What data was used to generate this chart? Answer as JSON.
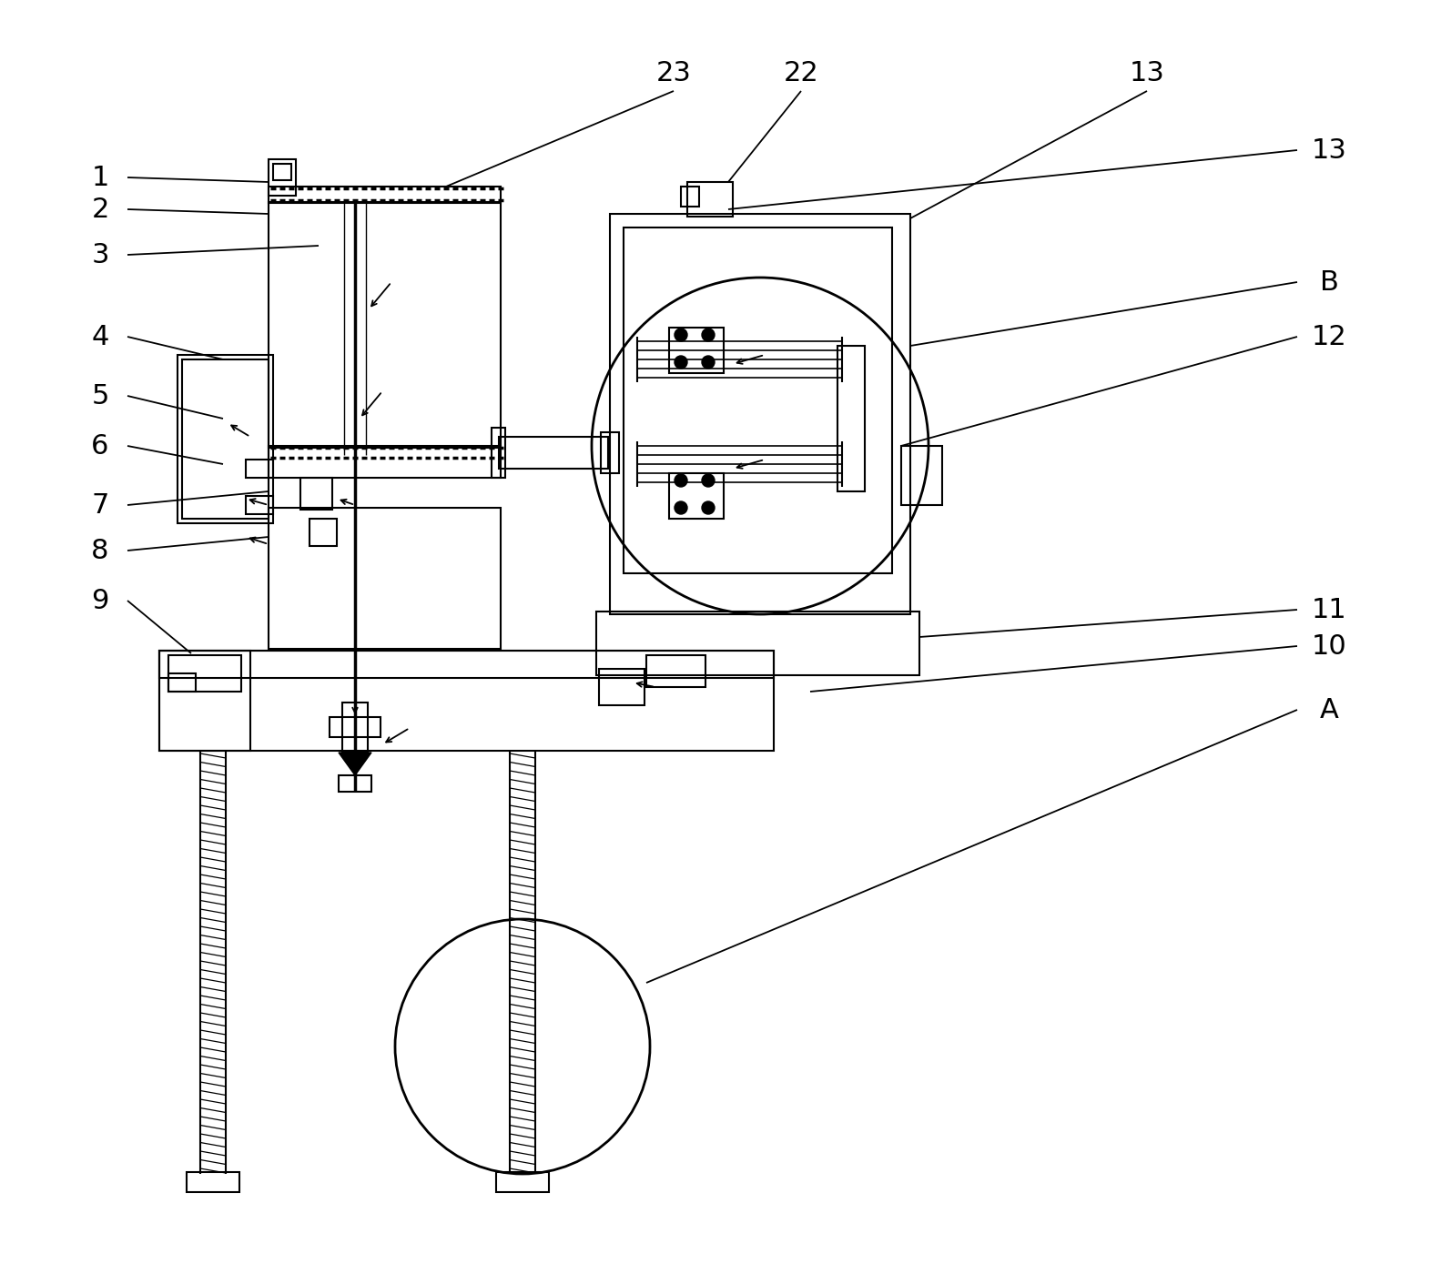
{
  "bg_color": "#ffffff",
  "lc": "#000000",
  "lw": 1.5,
  "fs": 22,
  "fig_w": 15.72,
  "fig_h": 14.11,
  "dpi": 100
}
